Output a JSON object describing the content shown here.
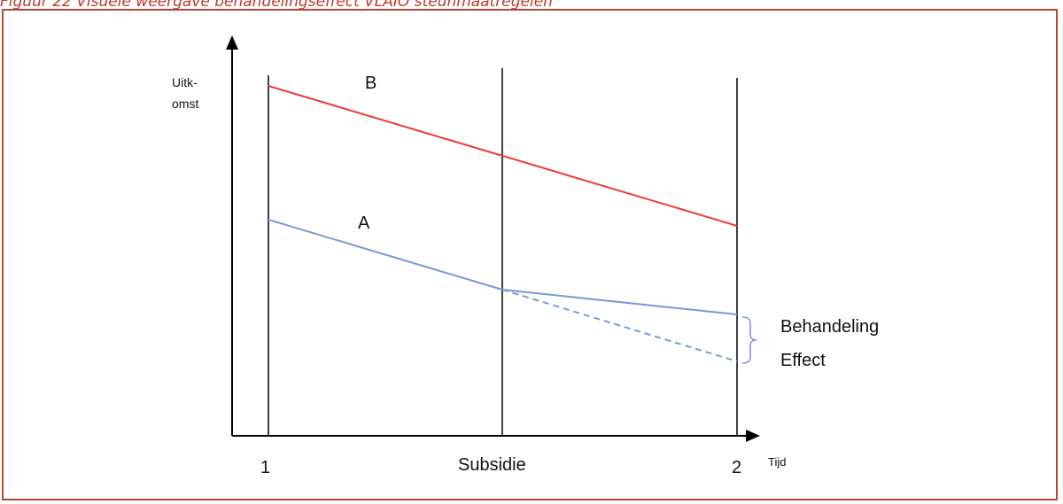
{
  "caption": "Figuur 22 Visuele weergave behandelingseffect VLAIO steunmaatregelen",
  "y_axis_label_line1": "Uitk-",
  "y_axis_label_line2": "omst",
  "x_axis_label": "Tijd",
  "tick_labels": {
    "t1": "1",
    "subsidie": "Subsidie",
    "t2": "2"
  },
  "series_labels": {
    "b": "B",
    "a": "A"
  },
  "effect_label_line1": "Behandeling",
  "effect_label_line2": "Effect",
  "colors": {
    "series_b": "#ef3a3a",
    "series_a": "#7a9ad6",
    "axis": "#000000",
    "caption": "#c0392b",
    "frame": "#b5473a"
  }
}
